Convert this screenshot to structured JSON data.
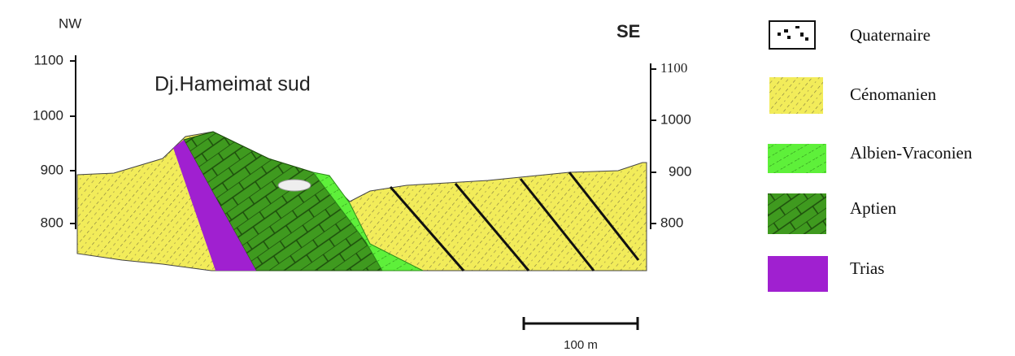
{
  "section": {
    "title": "Dj.Hameimat sud",
    "left_label": "NW",
    "right_label": "SE",
    "left_axis": {
      "ticks": [
        1100,
        1000,
        900,
        800
      ]
    },
    "right_axis": {
      "ticks": [
        1100,
        1000,
        900,
        800
      ]
    },
    "scale_bar": "100 m"
  },
  "legend": {
    "items": [
      "Quaternaire",
      "Cénomanien",
      "Albien-Vraconien",
      "Aptien",
      "Trias"
    ]
  }
}
